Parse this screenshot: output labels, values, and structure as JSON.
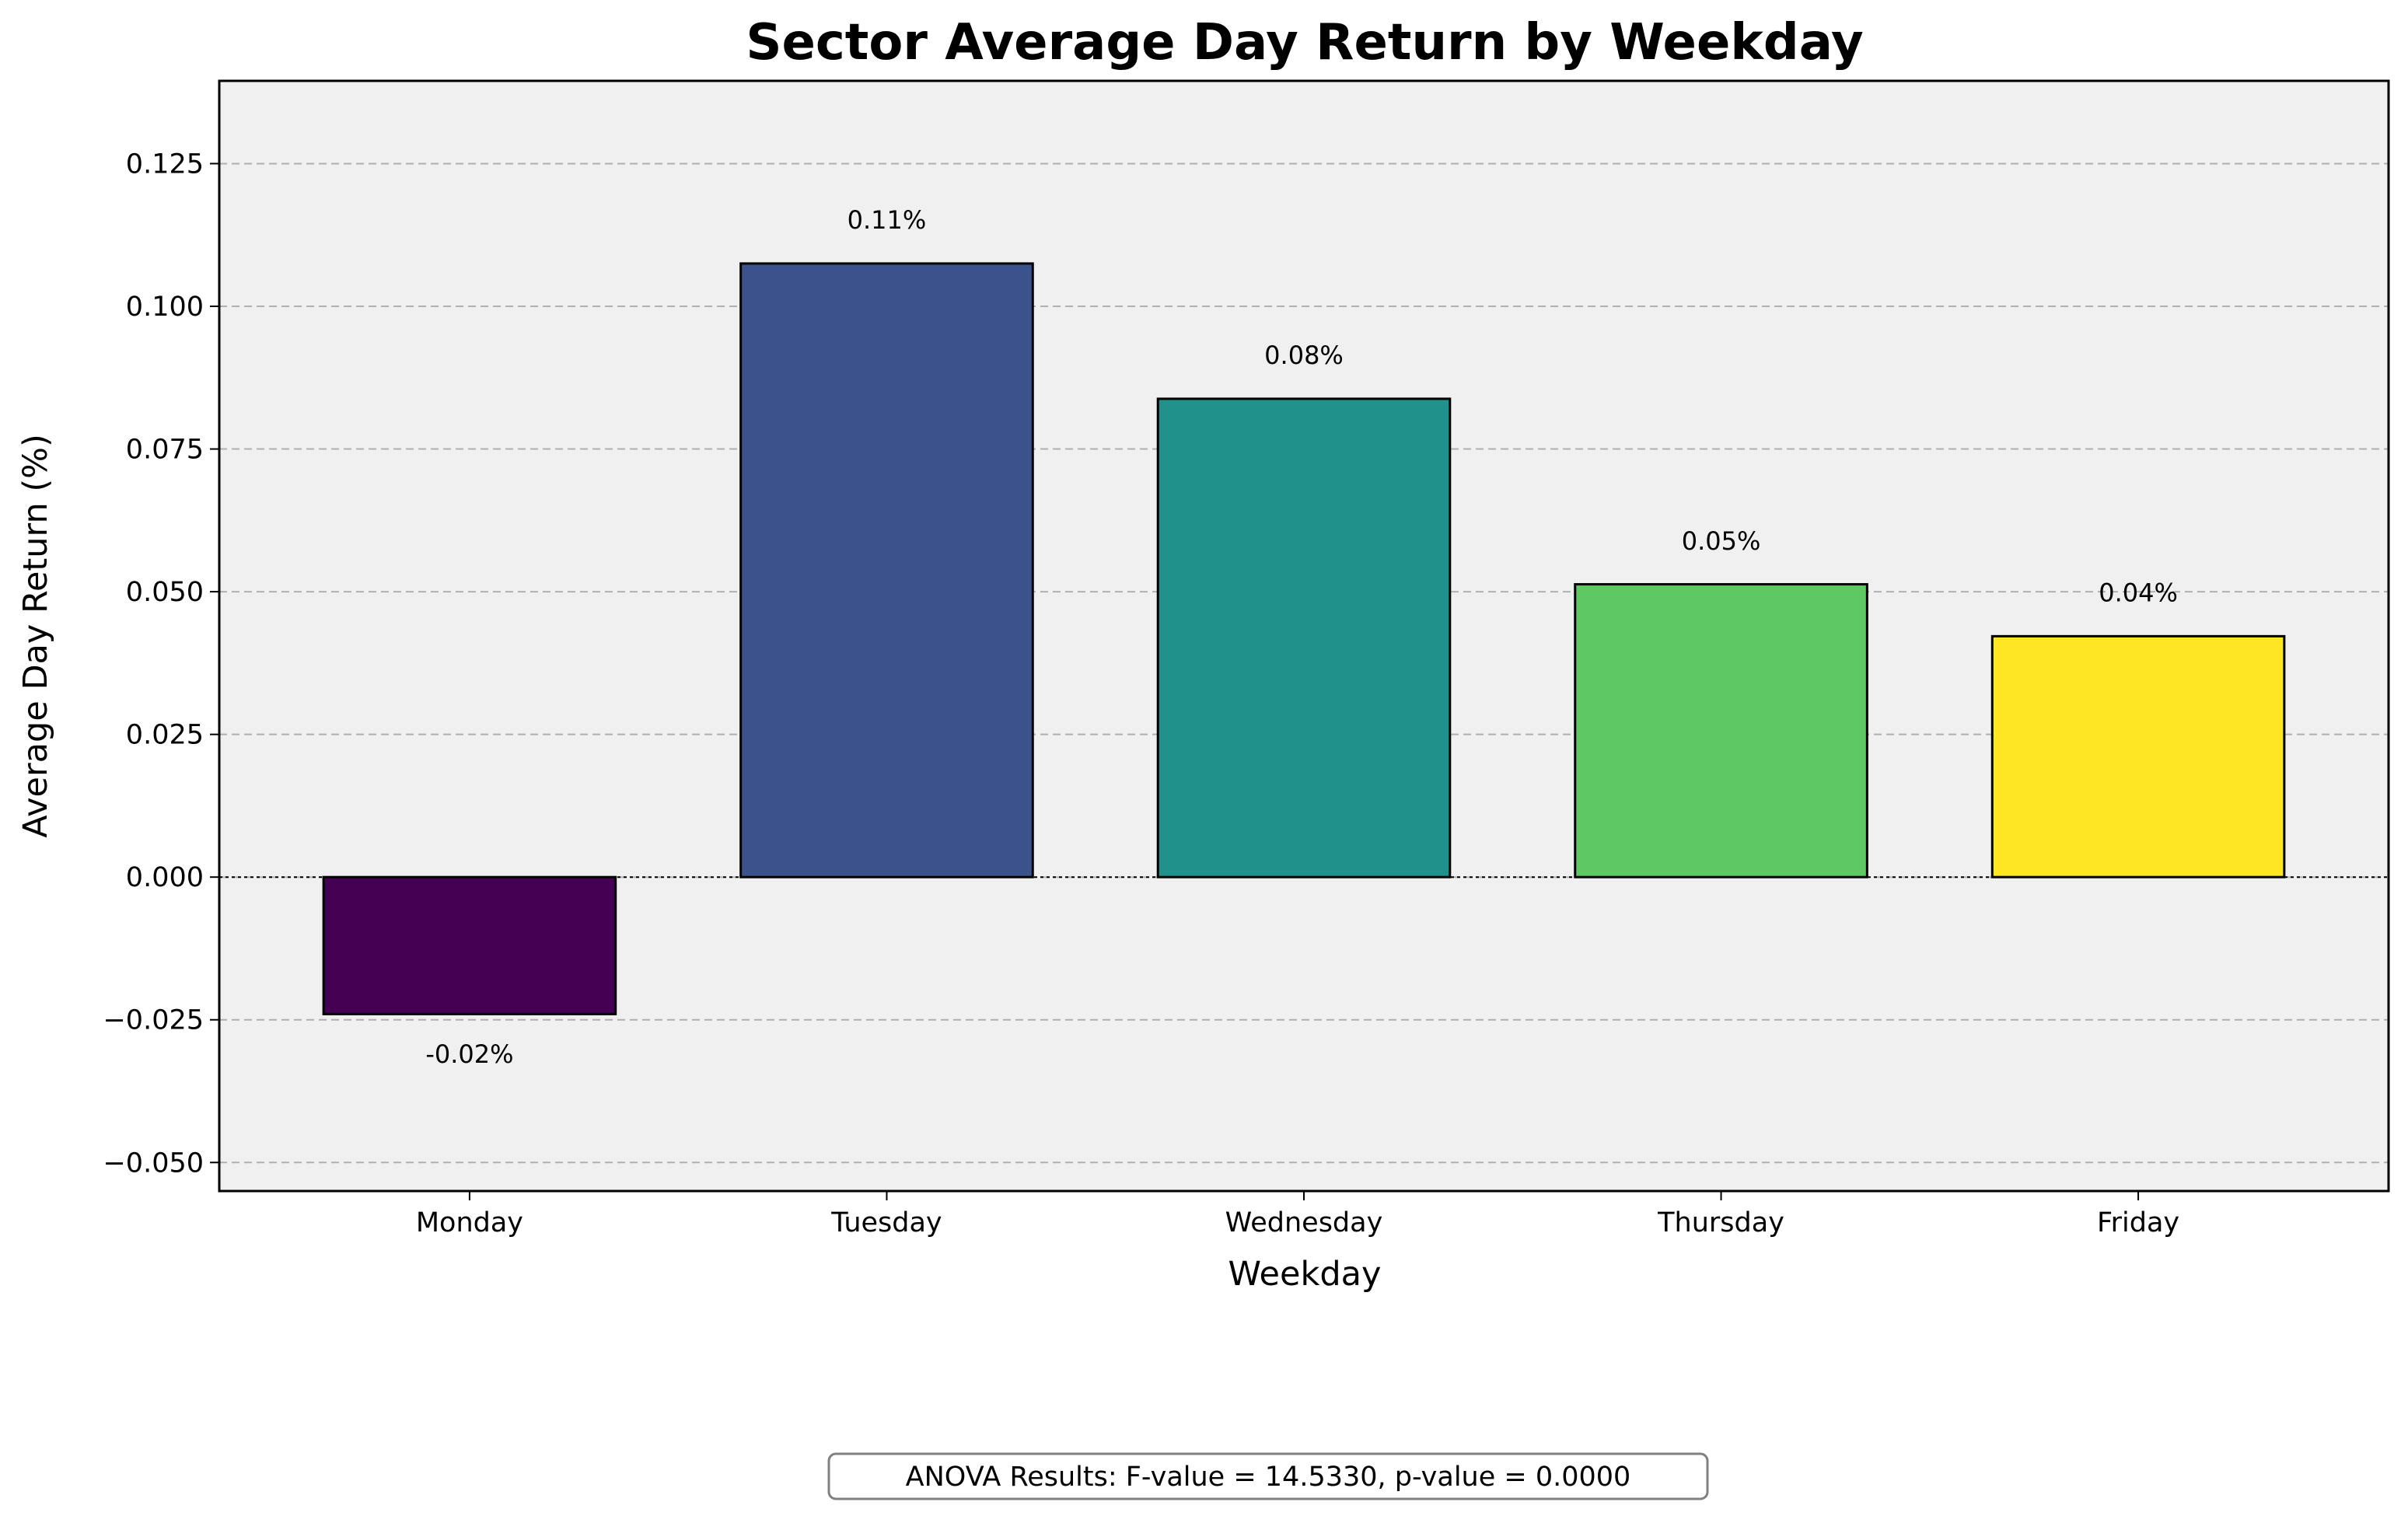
{
  "chart_data": {
    "type": "bar",
    "title": "Sector Average Day Return by Weekday",
    "xlabel": "Weekday",
    "ylabel": "Average Day Return (%)",
    "categories": [
      "Monday",
      "Tuesday",
      "Wednesday",
      "Thursday",
      "Friday"
    ],
    "values": [
      -0.024,
      0.1075,
      0.0838,
      0.0513,
      0.0422
    ],
    "value_labels": [
      "-0.02%",
      "0.11%",
      "0.08%",
      "0.05%",
      "0.04%"
    ],
    "colors": [
      "#440154",
      "#3b528b",
      "#21918c",
      "#5ec962",
      "#fde725"
    ],
    "ylim": [
      -0.055,
      0.1395
    ],
    "yticks": [
      -0.05,
      -0.025,
      0.0,
      0.025,
      0.05,
      0.075,
      0.1,
      0.125
    ],
    "ytick_labels": [
      "−0.050",
      "−0.025",
      "0.000",
      "0.025",
      "0.050",
      "0.075",
      "0.100",
      "0.125"
    ],
    "grid": "y-dashed",
    "background_color": "#f0f0f0",
    "annotation": "ANOVA Results: F-value = 14.5330, p-value = 0.0000"
  }
}
